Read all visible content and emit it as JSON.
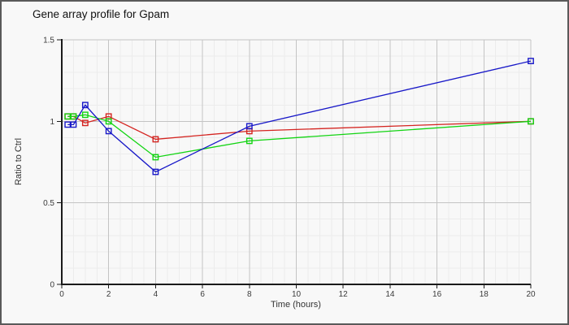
{
  "window": {
    "background_color": "#f8f8f8",
    "border_color": "#5a5a5a"
  },
  "chart_data": {
    "type": "line",
    "title": "Gene array profile for Gpam",
    "xlabel": "Time (hours)",
    "ylabel": "Ratio to Ctrl",
    "xlim": [
      0,
      20
    ],
    "ylim": [
      0,
      1.5
    ],
    "xticks": [
      0,
      2,
      4,
      6,
      8,
      10,
      12,
      14,
      16,
      18,
      20
    ],
    "yticks": [
      0,
      0.5,
      1,
      1.5
    ],
    "x_minor_step": 0.5,
    "y_minor_step": 0.1,
    "grid": "major and minor, on",
    "legend": "none",
    "marker": "open-square",
    "x": [
      0.25,
      0.5,
      1,
      2,
      4,
      8,
      20
    ],
    "series": [
      {
        "name": "red-series",
        "color": "#d42420",
        "values": [
          1.03,
          1.03,
          0.99,
          1.03,
          0.89,
          0.94,
          1.0
        ]
      },
      {
        "name": "green-series",
        "color": "#12d412",
        "values": [
          1.03,
          1.03,
          1.04,
          1.0,
          0.78,
          0.88,
          1.0
        ]
      },
      {
        "name": "blue-series",
        "color": "#1818c8",
        "values": [
          0.98,
          0.98,
          1.1,
          0.94,
          0.69,
          0.97,
          1.37
        ]
      }
    ]
  }
}
